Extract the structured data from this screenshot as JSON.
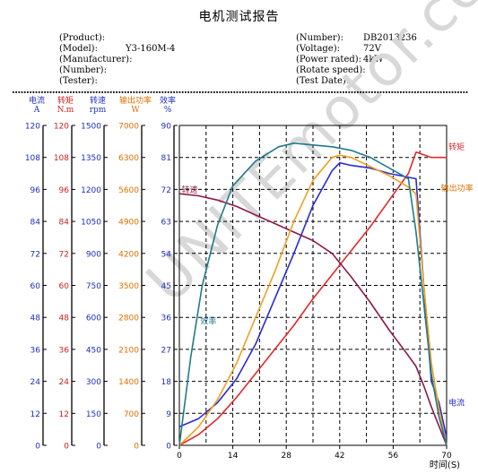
{
  "report": {
    "title": "电机测试报告",
    "left_fields": [
      {
        "label": "(Product):",
        "value": ""
      },
      {
        "label": "(Model):",
        "value": "Y3-160M-4"
      },
      {
        "label": "(Manufacturer):",
        "value": ""
      },
      {
        "label": "(Number):",
        "value": ""
      },
      {
        "label": "(Tester):",
        "value": ""
      }
    ],
    "right_fields": [
      {
        "label": "(Number):",
        "value": "DB2013236"
      },
      {
        "label": "(Voltage):",
        "value": "72V"
      },
      {
        "label": "(Power rated):",
        "value": "4kW"
      },
      {
        "label": "(Rotate speed):",
        "value": ""
      },
      {
        "label": "(Test Date):",
        "value": ""
      }
    ],
    "watermark": "UNITEmotor.com"
  },
  "chart_data": {
    "type": "line",
    "xlabel": "时间(S)",
    "x_ticks": [
      0,
      14,
      28,
      42,
      56,
      70
    ],
    "xlim": [
      0,
      70
    ],
    "grid": true,
    "axes": [
      {
        "title": "电流",
        "unit": "A",
        "color": "#1f2fbf",
        "ticks": [
          "120",
          "108",
          "96",
          "84",
          "72",
          "60",
          "48",
          "36",
          "24",
          "12",
          "0"
        ]
      },
      {
        "title": "转矩",
        "unit": "N.m",
        "color": "#d02020",
        "ticks": [
          "120",
          "108",
          "96",
          "84",
          "72",
          "60",
          "48",
          "36",
          "24",
          "12",
          "0"
        ]
      },
      {
        "title": "转速",
        "unit": "rpm",
        "color": "#1f2fbf",
        "ticks": [
          "1500",
          "1350",
          "1200",
          "1050",
          "900",
          "750",
          "600",
          "450",
          "300",
          "150",
          "0"
        ]
      },
      {
        "title": "输出功率",
        "unit": "W",
        "color": "#e07000",
        "ticks": [
          "7000",
          "6300",
          "5600",
          "4900",
          "4200",
          "3500",
          "2800",
          "2100",
          "1400",
          "700",
          "0"
        ]
      },
      {
        "title": "效率",
        "unit": "%",
        "color": "#1f2fbf",
        "ticks": [
          "90",
          "81",
          "72",
          "63",
          "54",
          "45",
          "36",
          "27",
          "18",
          "9",
          "0"
        ]
      }
    ],
    "series": [
      {
        "name": "电流",
        "color": "#2a2ad0",
        "ymax": 120,
        "x": [
          0,
          5,
          10,
          15,
          20,
          25,
          30,
          35,
          40,
          42,
          45,
          50,
          55,
          62,
          64,
          66,
          68,
          70
        ],
        "y": [
          7,
          10,
          16,
          25,
          38,
          55,
          72,
          90,
          103,
          106,
          105,
          104,
          102,
          100,
          60,
          24,
          16,
          3
        ]
      },
      {
        "name": "转矩",
        "color": "#e02a2a",
        "ymax": 120,
        "x": [
          0,
          5,
          10,
          15,
          20,
          25,
          30,
          35,
          40,
          45,
          50,
          55,
          60,
          62,
          64,
          66,
          68,
          70
        ],
        "y": [
          0,
          4,
          10,
          18,
          27,
          36,
          45,
          55,
          64,
          73,
          82,
          92,
          102,
          110,
          109,
          108,
          108,
          108
        ]
      },
      {
        "name": "转速",
        "color": "#8a1a4a",
        "ymax": 1500,
        "x": [
          0,
          5,
          10,
          15,
          20,
          25,
          30,
          35,
          40,
          45,
          50,
          55,
          60,
          62,
          64,
          66,
          68,
          70
        ],
        "y": [
          1180,
          1170,
          1150,
          1120,
          1080,
          1040,
          1000,
          960,
          900,
          790,
          670,
          540,
          420,
          370,
          280,
          180,
          90,
          0
        ]
      },
      {
        "name": "输出功率",
        "color": "#f0a020",
        "ymax": 7000,
        "x": [
          0,
          5,
          10,
          15,
          20,
          25,
          30,
          35,
          40,
          42,
          45,
          50,
          55,
          60,
          62,
          64,
          66,
          68,
          70
        ],
        "y": [
          0,
          400,
          1000,
          1800,
          2800,
          3800,
          4900,
          5800,
          6300,
          6350,
          6300,
          6100,
          5900,
          5650,
          5500,
          3500,
          1800,
          800,
          0
        ]
      },
      {
        "name": "效率",
        "color": "#207a8a",
        "ymax": 90,
        "x": [
          0,
          3,
          6,
          10,
          14,
          20,
          26,
          30,
          35,
          40,
          45,
          50,
          55,
          60,
          62,
          64,
          66,
          68,
          70
        ],
        "y": [
          0,
          25,
          45,
          62,
          73,
          80,
          84,
          85,
          84.5,
          84,
          83,
          81,
          78,
          75,
          60,
          40,
          20,
          8,
          0
        ]
      }
    ],
    "series_labels": [
      {
        "name": "电流",
        "color": "#2a2ad0",
        "x": 70.5,
        "y_frac": 0.125
      },
      {
        "name": "转矩",
        "color": "#e02a2a",
        "x": 70.5,
        "y_frac": 0.925
      },
      {
        "name": "转速",
        "color": "#8a1a4a",
        "x": 0.6,
        "y_frac": 0.79
      },
      {
        "name": "输出功率",
        "color": "#e07000",
        "x": 68.5,
        "y_frac": 0.795
      },
      {
        "name": "效率",
        "color": "#207a8a",
        "x": 5.5,
        "y_frac": 0.38
      }
    ]
  }
}
